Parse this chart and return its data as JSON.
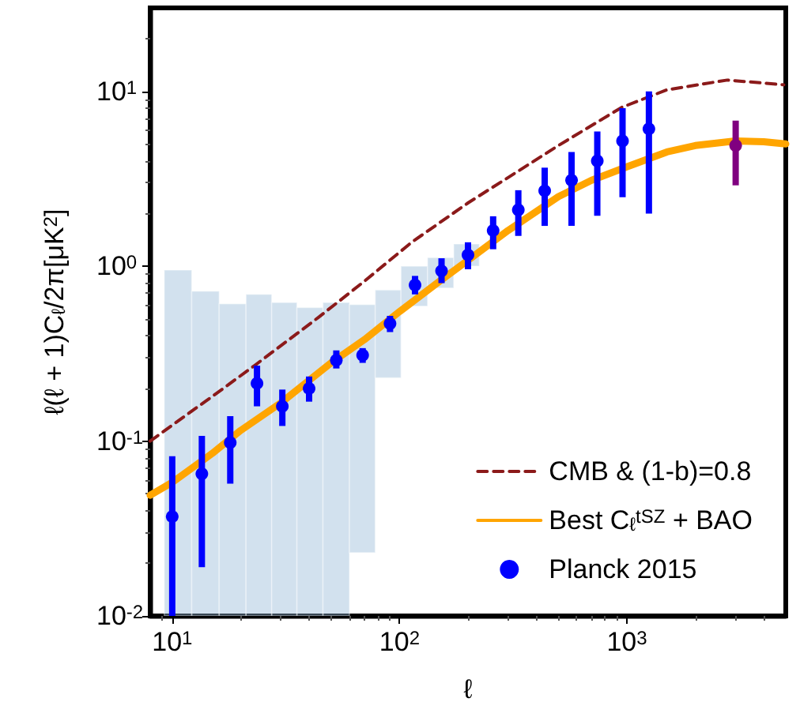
{
  "chart_data": {
    "type": "scatter",
    "xlabel": "ℓ",
    "ylabel": "ℓ(ℓ + 1)C$_{ℓ}$/2π[μK$^{2}$]",
    "log": "xy",
    "xlim": [
      8,
      5000
    ],
    "ylim": [
      0.01,
      30
    ],
    "xticks": [
      {
        "value": 10,
        "label": "10$^{1}$"
      },
      {
        "value": 100,
        "label": "10$^{2}$"
      },
      {
        "value": 1000,
        "label": "10$^{3}$"
      }
    ],
    "yticks": [
      {
        "value": 0.01,
        "label": "10$^{-2}$"
      },
      {
        "value": 0.1,
        "label": "10$^{-1}$"
      },
      {
        "value": 1,
        "label": "10$^{0}$"
      },
      {
        "value": 10,
        "label": "10$^{1}$"
      }
    ],
    "grid": false,
    "legend": "bottom right",
    "series": [
      {
        "type": "bar",
        "color": "#8fb3d4",
        "x": [
          10.6,
          14,
          18.5,
          24.1,
          31.1,
          40.2,
          52.7,
          68.8,
          88.8,
          116,
          152,
          197
        ],
        "base": [
          0.01,
          0.01,
          0.01,
          0.01,
          0.01,
          0.01,
          0.01,
          0.023,
          0.23,
          0.59,
          0.75,
          1.0
        ],
        "values": [
          0.94,
          0.71,
          0.6,
          0.68,
          0.61,
          0.57,
          0.61,
          0.58,
          0.5,
          0.41,
          0.37,
          0.34
        ]
      },
      {
        "type": "line",
        "name": "CMB & (1-b)=0.8",
        "color": "#8b1a1a",
        "line_style": "dashed",
        "marker": "none",
        "x": [
          8,
          15,
          23,
          44,
          70,
          113,
          200,
          333,
          500,
          950,
          1500,
          2770,
          4900
        ],
        "values": [
          0.1,
          0.18,
          0.27,
          0.51,
          0.82,
          1.37,
          2.3,
          3.5,
          4.9,
          8.1,
          10.2,
          11.6,
          10.9
        ]
      },
      {
        "type": "line",
        "name": "Best C$_{ℓ}$$^{tSZ}$ + BAO",
        "color": "#ffa500",
        "line_style": "solid",
        "marker": "none",
        "x": [
          8,
          10,
          15,
          20,
          30,
          50,
          70,
          100,
          150,
          200,
          300,
          500,
          700,
          1000,
          1500,
          2000,
          3000,
          4000,
          5000
        ],
        "values": [
          0.049,
          0.058,
          0.085,
          0.115,
          0.165,
          0.28,
          0.38,
          0.55,
          0.82,
          1.08,
          1.6,
          2.5,
          3.1,
          3.7,
          4.5,
          4.9,
          5.2,
          5.15,
          5.0
        ]
      },
      {
        "name": "Planck 2015",
        "color": "#0000ff",
        "marker": "circle",
        "x": [
          10,
          13.5,
          18,
          23.6,
          30.5,
          40,
          52.7,
          68.8,
          90.8,
          117,
          153,
          200,
          258,
          333,
          435,
          571,
          741,
          957,
          1250
        ],
        "values": [
          0.037,
          0.065,
          0.098,
          0.214,
          0.158,
          0.2,
          0.29,
          0.31,
          0.47,
          0.78,
          0.94,
          1.16,
          1.6,
          2.1,
          2.7,
          3.1,
          4.0,
          5.2,
          6.1
        ],
        "errors": [
          [
            0.01,
            0.082
          ],
          [
            0.019,
            0.107
          ],
          [
            0.057,
            0.139
          ],
          [
            0.158,
            0.27
          ],
          [
            0.122,
            0.197
          ],
          [
            0.168,
            0.234
          ],
          [
            0.26,
            0.33
          ],
          [
            0.28,
            0.34
          ],
          [
            0.42,
            0.52
          ],
          [
            0.69,
            0.88
          ],
          [
            0.8,
            1.11
          ],
          [
            0.96,
            1.37
          ],
          [
            1.25,
            1.93
          ],
          [
            1.49,
            2.72
          ],
          [
            1.7,
            3.66
          ],
          [
            1.7,
            4.5
          ],
          [
            1.94,
            5.9
          ],
          [
            2.48,
            8.0
          ],
          [
            2.0,
            10.0
          ]
        ]
      },
      {
        "color": "#800080",
        "marker": "circle",
        "x": [
          3010
        ],
        "values": [
          4.9
        ],
        "errors": [
          [
            2.9,
            6.8
          ]
        ]
      }
    ]
  }
}
